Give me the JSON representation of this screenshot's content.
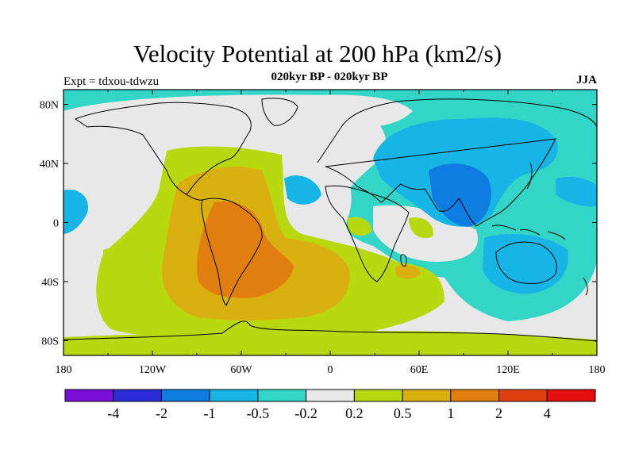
{
  "title": "Velocity Potential at 200 hPa (km2/s)",
  "subtitle": "020kyr BP - 020kyr BP",
  "experiment": "Expt = tdxou-tdwzu",
  "season": "JJA",
  "map": {
    "projection": "equirectangular",
    "lon_range": [
      -180,
      180
    ],
    "lat_range": [
      -90,
      90
    ],
    "lon_ticks": [
      "180",
      "120W",
      "60W",
      "0",
      "60E",
      "120E",
      "180"
    ],
    "lat_ticks": [
      "80N",
      "40N",
      "0",
      "40S",
      "80S"
    ],
    "ocean_color": "#33d6c6",
    "coastline_color": "#000000"
  },
  "colorbar": {
    "colors": [
      "#7a0fd9",
      "#2b2bd9",
      "#0e7ce0",
      "#17b4e6",
      "#33d6c6",
      "#e8e8e8",
      "#b8d90f",
      "#d9b00f",
      "#e07f0f",
      "#e0400f",
      "#e60f0f"
    ],
    "labels": [
      "-4",
      "-2",
      "-1",
      "-0.5",
      "-0.2",
      "0.2",
      "0.5",
      "1",
      "2",
      "4"
    ]
  }
}
